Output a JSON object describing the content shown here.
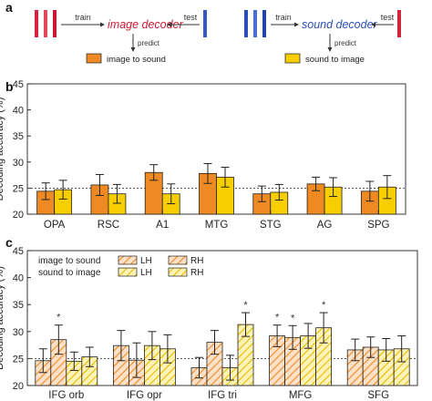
{
  "panel_labels": {
    "a": "a",
    "b": "b",
    "c": "c"
  },
  "schematic": {
    "left": {
      "train": "train",
      "test": "test",
      "decoder": "image decoder",
      "predict": "predict",
      "legend": "image to sound",
      "color": "#cc1a33",
      "legend_color": "#ef8a22"
    },
    "right": {
      "train": "train",
      "test": "test",
      "decoder": "sound decoder",
      "predict": "predict",
      "legend": "sound to image",
      "color": "#2a4fb8",
      "legend_color": "#f7cf00"
    }
  },
  "colors": {
    "image_to_sound": "#ef8a22",
    "sound_to_image": "#f7cf00",
    "image_to_sound_hatch_bg": "#fbe1c7",
    "sound_to_image_hatch_bg": "#fdf2b8"
  },
  "chart_data": [
    {
      "type": "bar",
      "panel": "b",
      "ylabel": "Decoding accuracy (%)",
      "ylim": [
        20,
        45
      ],
      "yticks": [
        "20",
        "25",
        "30",
        "35",
        "40",
        "45"
      ],
      "yticks_num": [
        20,
        25,
        30,
        35,
        40,
        45
      ],
      "chance": 25,
      "categories": [
        "OPA",
        "RSC",
        "A1",
        "MTG",
        "STG",
        "AG",
        "SPG"
      ],
      "series": [
        {
          "key": "image_to_sound",
          "values": [
            24.4,
            25.6,
            28.0,
            27.8,
            23.9,
            25.8,
            24.4
          ],
          "errors": [
            1.6,
            2.0,
            1.5,
            1.9,
            1.5,
            1.3,
            1.9
          ]
        },
        {
          "key": "sound_to_image",
          "values": [
            24.7,
            23.9,
            23.9,
            27.1,
            24.2,
            25.2,
            25.2
          ],
          "errors": [
            1.8,
            1.8,
            1.9,
            1.9,
            1.5,
            1.8,
            2.2
          ]
        }
      ]
    },
    {
      "type": "bar",
      "panel": "c",
      "ylabel": "Decoding accuracy (%)",
      "ylim": [
        20,
        45
      ],
      "yticks": [
        "20",
        "25",
        "30",
        "35",
        "40",
        "45"
      ],
      "yticks_num": [
        20,
        25,
        30,
        35,
        40,
        45
      ],
      "chance": 25,
      "legend": {
        "rows": [
          "image to sound",
          "sound to image"
        ],
        "cols": [
          "LH",
          "RH"
        ]
      },
      "categories": [
        "IFG orb",
        "IFG opr",
        "IFG tri",
        "MFG",
        "SFG"
      ],
      "bar_order": [
        "image to sound LH",
        "image to sound RH",
        "sound to image LH",
        "sound to image RH"
      ],
      "values": [
        [
          24.6,
          28.5,
          24.5,
          25.3
        ],
        [
          27.4,
          24.7,
          27.4,
          26.8
        ],
        [
          23.3,
          28.0,
          23.3,
          31.3
        ],
        [
          29.2,
          28.9,
          29.2,
          30.7
        ],
        [
          26.6,
          27.1,
          26.6,
          26.8
        ]
      ],
      "errors": [
        [
          2.2,
          2.7,
          1.7,
          1.8
        ],
        [
          2.8,
          3.2,
          2.6,
          2.6
        ],
        [
          1.9,
          2.2,
          2.3,
          2.2
        ],
        [
          2.0,
          2.2,
          2.3,
          2.8
        ],
        [
          2.0,
          1.9,
          2.1,
          2.4
        ]
      ],
      "significance": [
        [
          false,
          true,
          false,
          false
        ],
        [
          false,
          false,
          false,
          false
        ],
        [
          false,
          false,
          false,
          true
        ],
        [
          true,
          true,
          false,
          true
        ],
        [
          false,
          false,
          false,
          false
        ]
      ],
      "significance_mark": "*"
    }
  ]
}
